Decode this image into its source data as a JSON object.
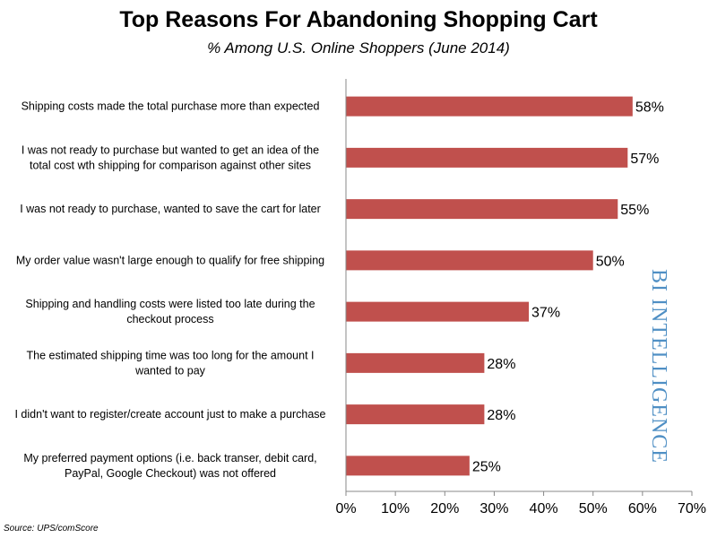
{
  "chart_data": {
    "type": "bar",
    "orientation": "horizontal",
    "title": "Top Reasons For Abandoning Shopping Cart",
    "subtitle": "% Among U.S. Online Shoppers (June 2014)",
    "categories": [
      [
        "Shipping costs made the total purchase more than expected"
      ],
      [
        "I was not ready to purchase but wanted to get an idea of the",
        "total cost wth shipping for comparison against other sites"
      ],
      [
        "I was not ready to purchase, wanted to save the cart for later"
      ],
      [
        "My order value wasn't large enough to qualify for free shipping"
      ],
      [
        "Shipping and handling costs were listed too late during the",
        "checkout process"
      ],
      [
        "The estimated shipping time was too long for the amount I",
        "wanted to pay"
      ],
      [
        "I didn't want to register/create account just to make a purchase"
      ],
      [
        "My preferred payment options (i.e. back transer, debit card,",
        "PayPal, Google Checkout) was not offered"
      ]
    ],
    "values": [
      58,
      57,
      55,
      50,
      37,
      28,
      28,
      25
    ],
    "value_labels": [
      "58%",
      "57%",
      "55%",
      "50%",
      "37%",
      "28%",
      "28%",
      "25%"
    ],
    "xlim": [
      0,
      70
    ],
    "xticks": [
      0,
      10,
      20,
      30,
      40,
      50,
      60,
      70
    ],
    "xtick_labels": [
      "0%",
      "10%",
      "20%",
      "30%",
      "40%",
      "50%",
      "60%",
      "70%"
    ],
    "bar_color": "#c0504d",
    "grid": false
  },
  "brand": "BI INTELLIGENCE",
  "brand_color": "#4f8fc4",
  "source": "Source: UPS/comScore"
}
